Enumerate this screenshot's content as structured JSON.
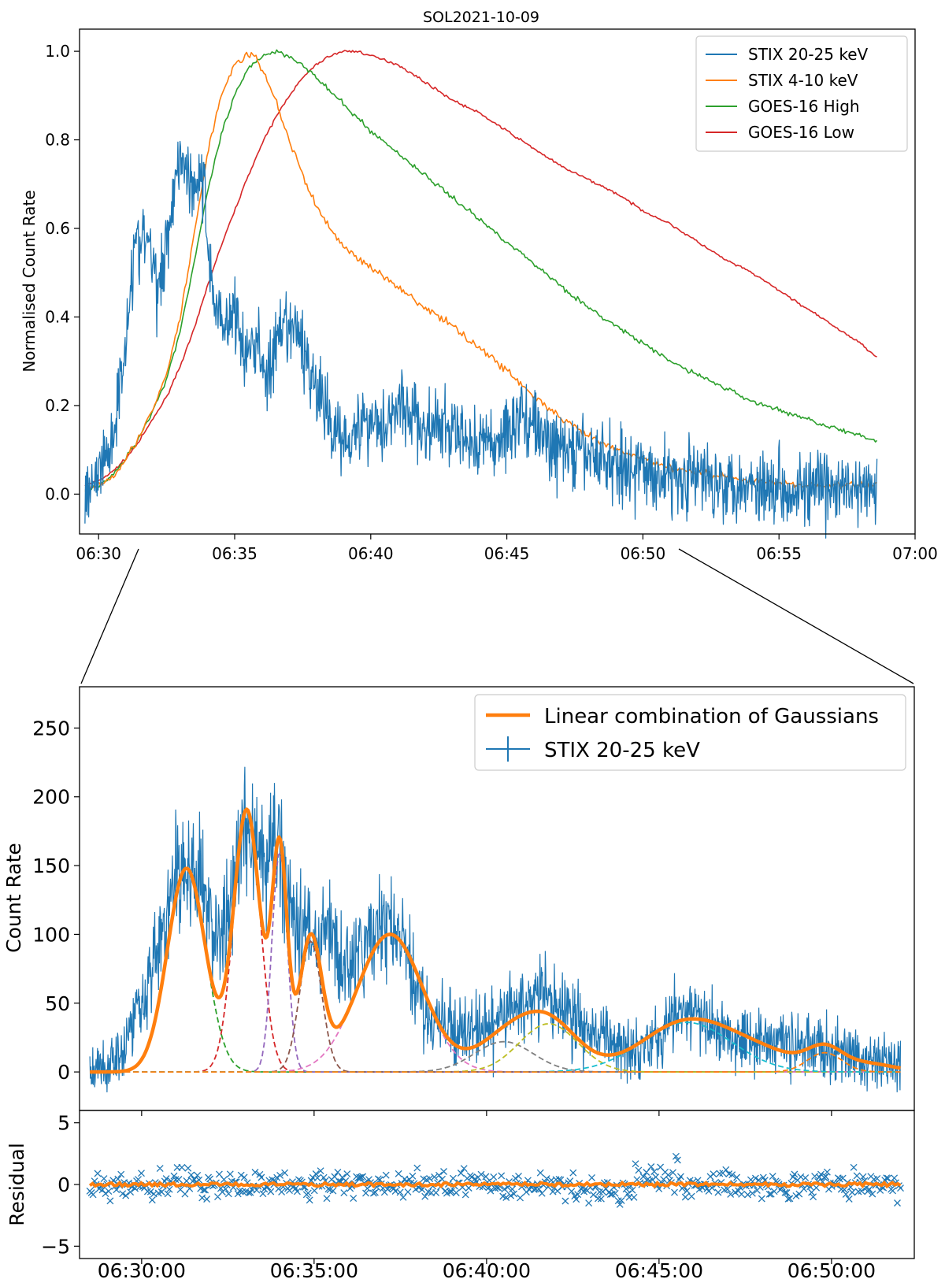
{
  "colors": {
    "stix_hi": "#1f77b4",
    "stix_lo": "#ff7f0e",
    "goes_high": "#2ca02c",
    "goes_low": "#d62728",
    "fit": "#ff7f0e",
    "components": [
      "#2ca02c",
      "#d62728",
      "#9467bd",
      "#8c564b",
      "#e377c2",
      "#7f7f7f",
      "#bcbd22",
      "#17becf",
      "#ff7f0e"
    ]
  },
  "chart_data": [
    {
      "type": "line",
      "title": "SOL2021-10-09",
      "xlabel": "",
      "ylabel": "Normalised Count Rate",
      "xlim_minutes": [
        29.3,
        60
      ],
      "ylim": [
        -0.09,
        1.05
      ],
      "x_ticks": [
        {
          "value": 30,
          "label": "06:30"
        },
        {
          "value": 35,
          "label": "06:35"
        },
        {
          "value": 40,
          "label": "06:40"
        },
        {
          "value": 45,
          "label": "06:45"
        },
        {
          "value": 50,
          "label": "06:50"
        },
        {
          "value": 55,
          "label": "06:55"
        },
        {
          "value": 60,
          "label": "07:00"
        }
      ],
      "y_ticks": [
        {
          "value": 0.0,
          "label": "0.0"
        },
        {
          "value": 0.2,
          "label": "0.2"
        },
        {
          "value": 0.4,
          "label": "0.4"
        },
        {
          "value": 0.6,
          "label": "0.6"
        },
        {
          "value": 0.8,
          "label": "0.8"
        },
        {
          "value": 1.0,
          "label": "1.0"
        }
      ],
      "legend_position": "top-right",
      "series": [
        {
          "name": "STIX 20-25 keV",
          "color": "#1f77b4",
          "x": [
            29.5,
            30,
            30.5,
            30.9,
            31.3,
            31.8,
            32.2,
            32.6,
            33,
            33.4,
            33.8,
            34.2,
            34.6,
            35,
            35.4,
            35.8,
            36.2,
            36.6,
            37,
            37.4,
            38,
            38.5,
            39,
            39.5,
            40,
            40.5,
            41,
            41.5,
            42,
            42.5,
            43,
            43.5,
            44,
            44.5,
            45,
            45.5,
            46,
            46.5,
            47,
            47.5,
            48,
            48.5,
            49,
            49.5,
            50,
            51,
            52,
            53,
            54,
            55,
            56,
            57,
            58,
            58.6
          ],
          "y": [
            0.01,
            0.05,
            0.12,
            0.3,
            0.55,
            0.58,
            0.45,
            0.62,
            0.78,
            0.7,
            0.72,
            0.45,
            0.38,
            0.42,
            0.3,
            0.35,
            0.26,
            0.34,
            0.38,
            0.35,
            0.24,
            0.16,
            0.13,
            0.15,
            0.17,
            0.16,
            0.2,
            0.18,
            0.14,
            0.15,
            0.14,
            0.12,
            0.12,
            0.11,
            0.14,
            0.18,
            0.16,
            0.11,
            0.1,
            0.09,
            0.09,
            0.08,
            0.07,
            0.06,
            0.05,
            0.04,
            0.04,
            0.03,
            0.02,
            0.02,
            0.01,
            0.01,
            0.01,
            0.0
          ],
          "noise": 0.06
        },
        {
          "name": "STIX 4-10 keV",
          "color": "#ff7f0e",
          "x": [
            29.5,
            30,
            30.5,
            31,
            31.5,
            32,
            32.5,
            33,
            33.5,
            34,
            34.5,
            35,
            35.4,
            35.7,
            36,
            36.5,
            37,
            37.5,
            38,
            38.5,
            39,
            40,
            41,
            42,
            43,
            44,
            45,
            46,
            47,
            48,
            49,
            50,
            51,
            52,
            53,
            54,
            55,
            56,
            57,
            58,
            58.6
          ],
          "y": [
            0.01,
            0.02,
            0.04,
            0.08,
            0.13,
            0.19,
            0.27,
            0.4,
            0.58,
            0.77,
            0.9,
            0.97,
            0.99,
            0.99,
            0.96,
            0.89,
            0.8,
            0.72,
            0.65,
            0.6,
            0.56,
            0.51,
            0.47,
            0.42,
            0.38,
            0.33,
            0.28,
            0.22,
            0.17,
            0.13,
            0.1,
            0.08,
            0.06,
            0.05,
            0.04,
            0.03,
            0.025,
            0.02,
            0.02,
            0.02,
            0.02
          ],
          "noise": 0.006
        },
        {
          "name": "GOES-16 High",
          "color": "#2ca02c",
          "x": [
            29.5,
            30,
            30.5,
            31,
            31.5,
            32,
            32.5,
            33,
            33.5,
            34,
            34.5,
            35,
            35.5,
            36,
            36.5,
            37,
            37.5,
            38,
            39,
            40,
            41,
            42,
            43,
            44,
            45,
            46,
            47,
            48,
            49,
            50,
            51,
            52,
            53,
            54,
            55,
            56,
            57,
            58,
            58.6
          ],
          "y": [
            0.01,
            0.02,
            0.04,
            0.08,
            0.13,
            0.19,
            0.26,
            0.37,
            0.52,
            0.68,
            0.81,
            0.9,
            0.96,
            0.99,
            1.0,
            0.99,
            0.97,
            0.94,
            0.88,
            0.82,
            0.77,
            0.72,
            0.67,
            0.62,
            0.57,
            0.52,
            0.47,
            0.42,
            0.38,
            0.34,
            0.3,
            0.27,
            0.24,
            0.21,
            0.19,
            0.17,
            0.15,
            0.13,
            0.12
          ],
          "noise": 0.004
        },
        {
          "name": "GOES-16 Low",
          "color": "#d62728",
          "x": [
            29.5,
            30,
            30.5,
            31,
            31.5,
            32,
            32.5,
            33,
            33.5,
            34,
            34.5,
            35,
            35.5,
            36,
            36.5,
            37,
            37.5,
            38,
            38.5,
            39,
            39.5,
            40,
            41,
            42,
            43,
            44,
            45,
            46,
            47,
            48,
            49,
            50,
            51,
            52,
            53,
            54,
            55,
            56,
            57,
            58,
            58.6
          ],
          "y": [
            0.02,
            0.03,
            0.05,
            0.08,
            0.12,
            0.17,
            0.22,
            0.29,
            0.37,
            0.47,
            0.56,
            0.64,
            0.72,
            0.79,
            0.85,
            0.9,
            0.94,
            0.97,
            0.99,
            1.0,
            1.0,
            0.99,
            0.97,
            0.93,
            0.89,
            0.86,
            0.82,
            0.78,
            0.74,
            0.71,
            0.68,
            0.64,
            0.61,
            0.57,
            0.53,
            0.5,
            0.46,
            0.42,
            0.38,
            0.34,
            0.31
          ],
          "noise": 0.002
        }
      ]
    },
    {
      "type": "line",
      "title": "",
      "xlabel": "",
      "ylabel": "Count Rate",
      "xlim_minutes": [
        28.2,
        52.4
      ],
      "ylim": [
        -28,
        280
      ],
      "x_ticks": [
        {
          "value": 30,
          "label": "06:30:00"
        },
        {
          "value": 35,
          "label": "06:35:00"
        },
        {
          "value": 40,
          "label": "06:40:00"
        },
        {
          "value": 45,
          "label": "06:45:00"
        },
        {
          "value": 50,
          "label": "06:50:00"
        }
      ],
      "y_ticks": [
        {
          "value": 0,
          "label": "0"
        },
        {
          "value": 50,
          "label": "50"
        },
        {
          "value": 100,
          "label": "100"
        },
        {
          "value": 150,
          "label": "150"
        },
        {
          "value": 200,
          "label": "200"
        },
        {
          "value": 250,
          "label": "250"
        }
      ],
      "legend_position": "top-right",
      "legend": [
        "Linear combination of Gaussians",
        "STIX 20-25 keV"
      ],
      "stix_series": {
        "name": "STIX 20-25 keV",
        "x": [
          28.5,
          29,
          29.5,
          30,
          30.5,
          31,
          31.4,
          31.8,
          32.2,
          32.6,
          33,
          33.3,
          33.6,
          33.9,
          34.2,
          34.6,
          35,
          35.4,
          35.8,
          36.2,
          36.6,
          37,
          37.4,
          37.8,
          38.2,
          38.6,
          39,
          39.5,
          40,
          40.5,
          41,
          41.5,
          42,
          42.5,
          43,
          43.5,
          44,
          44.5,
          45,
          45.5,
          46,
          46.5,
          47,
          47.5,
          48,
          48.5,
          49,
          49.5,
          50,
          50.5,
          51,
          51.5,
          52
        ],
        "y": [
          0,
          5,
          20,
          55,
          90,
          140,
          148,
          130,
          95,
          120,
          185,
          170,
          140,
          180,
          130,
          110,
          95,
          105,
          75,
          80,
          95,
          110,
          100,
          75,
          45,
          35,
          30,
          30,
          30,
          40,
          50,
          55,
          50,
          40,
          30,
          22,
          20,
          20,
          28,
          40,
          45,
          30,
          30,
          25,
          25,
          22,
          20,
          18,
          15,
          12,
          8,
          6,
          5
        ],
        "noise": 24
      },
      "fit_components": [
        {
          "name": "component-1",
          "center": 31.3,
          "amplitude": 148,
          "sigma": 0.55
        },
        {
          "name": "component-2",
          "center": 33.05,
          "amplitude": 190,
          "sigma": 0.38
        },
        {
          "name": "component-3",
          "center": 34.0,
          "amplitude": 160,
          "sigma": 0.22
        },
        {
          "name": "component-4",
          "center": 34.9,
          "amplitude": 95,
          "sigma": 0.32
        },
        {
          "name": "component-5",
          "center": 37.2,
          "amplitude": 100,
          "sigma": 0.95
        },
        {
          "name": "component-6",
          "center": 40.5,
          "amplitude": 22,
          "sigma": 0.85
        },
        {
          "name": "component-7",
          "center": 41.8,
          "amplitude": 35,
          "sigma": 0.85
        },
        {
          "name": "component-8",
          "center": 45.8,
          "amplitude": 36,
          "sigma": 1.3
        },
        {
          "name": "component-9",
          "center": 49.8,
          "amplitude": 14,
          "sigma": 0.5
        }
      ],
      "fit_baseline_extra": [
        {
          "center": 48.0,
          "amplitude": 12,
          "sigma": 1.2
        },
        {
          "center": 51.0,
          "amplitude": 6,
          "sigma": 0.8
        }
      ]
    },
    {
      "type": "scatter",
      "title": "",
      "xlabel": "",
      "ylabel": "Residual",
      "xlim_minutes": [
        28.2,
        52.4
      ],
      "ylim": [
        -6,
        6
      ],
      "y_ticks": [
        {
          "value": -5,
          "label": "−5"
        },
        {
          "value": 0,
          "label": "0"
        },
        {
          "value": 5,
          "label": "5"
        }
      ],
      "marker": "x",
      "spread": 0.8,
      "zero_line_color": "#ff7f0e"
    }
  ]
}
